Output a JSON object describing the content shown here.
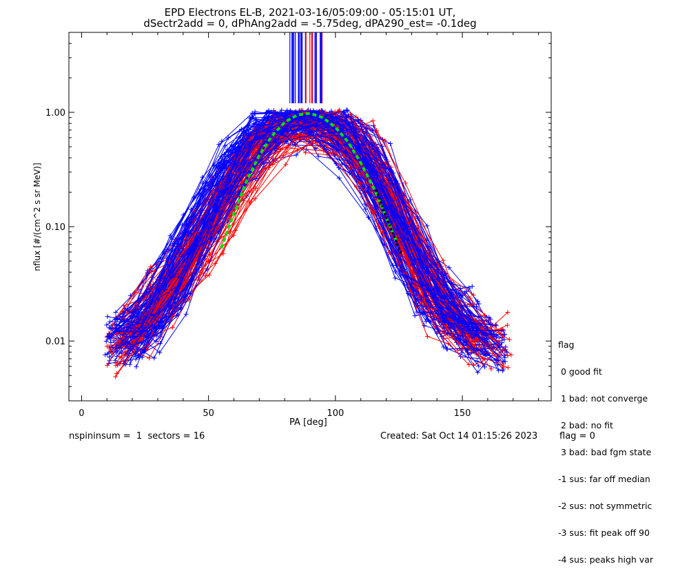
{
  "title_line1": "EPD Electrons EL-B, 2021-03-16/05:09:00 - 05:15:01 UT,",
  "title_line2": "dSectr2add = 0, dPhAng2add = -5.75deg, dPA290_est=  -0.1deg",
  "footer": {
    "left": "nspininsum =  1  sectors = 16",
    "created": "Created: Sat Oct 14 01:15:26 2023",
    "flag": "flag = 0"
  },
  "legend": {
    "title": "flag",
    "items": [
      " 0 good fit",
      " 1 bad: not converge",
      " 2 bad: no fit",
      " 3 bad: bad fgm state",
      "-1 sus: far off median",
      "-2 sus: not symmetric",
      "-3 sus: fit peak off 90",
      "-4 sus: peaks high var"
    ]
  },
  "colors": {
    "blue": "#0000ff",
    "red": "#ff0000",
    "green": "#00e000",
    "black": "#000000"
  },
  "chart_data": {
    "type": "line",
    "xlabel": "PA [deg]",
    "ylabel": "nflux [#/(cm^2 s sr MeV)]",
    "xlim": [
      -5,
      185
    ],
    "ylim": [
      0.003,
      5.0
    ],
    "yscale": "log",
    "x_ticks": [
      0,
      50,
      100,
      150
    ],
    "y_ticks": [
      0.01,
      0.1,
      1.0
    ],
    "y_tick_labels": [
      "0.01",
      "0.10",
      "1.00"
    ],
    "grid": false,
    "legend_position": "right",
    "series": [
      {
        "color": "blue",
        "style": "line-plus",
        "description_points": [
          [
            20,
            0.011
          ],
          [
            30,
            0.02
          ],
          [
            40,
            0.05
          ],
          [
            50,
            0.14
          ],
          [
            60,
            0.35
          ],
          [
            70,
            0.65
          ],
          [
            80,
            0.85
          ],
          [
            87,
            0.95
          ],
          [
            95,
            0.85
          ],
          [
            105,
            0.62
          ],
          [
            115,
            0.3
          ],
          [
            125,
            0.1
          ],
          [
            135,
            0.03
          ],
          [
            150,
            0.014
          ],
          [
            165,
            0.009
          ]
        ]
      },
      {
        "color": "red",
        "style": "line-plus",
        "description_points": [
          [
            10,
            0.009
          ],
          [
            20,
            0.012
          ],
          [
            30,
            0.025
          ],
          [
            40,
            0.04
          ],
          [
            50,
            0.09
          ],
          [
            60,
            0.25
          ],
          [
            70,
            0.55
          ],
          [
            80,
            0.8
          ],
          [
            90,
            0.9
          ],
          [
            100,
            0.75
          ],
          [
            110,
            0.45
          ],
          [
            120,
            0.2
          ],
          [
            130,
            0.06
          ],
          [
            140,
            0.02
          ],
          [
            150,
            0.013
          ],
          [
            160,
            0.01
          ]
        ]
      },
      {
        "color": "green",
        "style": "dashed-fit",
        "x": [
          55,
          60,
          65,
          70,
          75,
          80,
          85,
          90,
          95,
          100,
          105,
          110,
          115,
          120,
          124
        ],
        "values": [
          0.065,
          0.13,
          0.25,
          0.42,
          0.62,
          0.82,
          0.95,
          0.98,
          0.9,
          0.74,
          0.55,
          0.36,
          0.22,
          0.12,
          0.075
        ]
      },
      {
        "color": "black",
        "style": "dotted",
        "x": [
          116,
          118,
          120,
          122,
          124,
          126
        ],
        "values": [
          0.21,
          0.16,
          0.12,
          0.095,
          0.073,
          0.058
        ]
      }
    ]
  }
}
